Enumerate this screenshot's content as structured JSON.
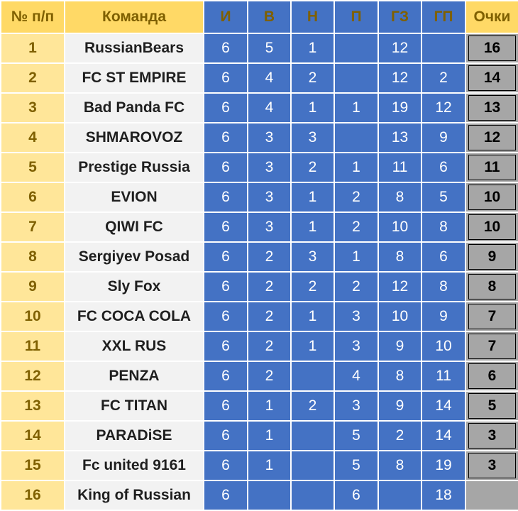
{
  "headers": {
    "num": "№ п/п",
    "team": "Команда",
    "games": "И",
    "wins": "В",
    "draws": "Н",
    "losses": "П",
    "goals_for": "ГЗ",
    "goals_against": "ГП",
    "points": "Очки"
  },
  "rows": [
    {
      "num": "1",
      "team": "RussianBears",
      "games": "6",
      "wins": "5",
      "draws": "1",
      "losses": "",
      "goals_for": "12",
      "goals_against": "",
      "points": "16"
    },
    {
      "num": "2",
      "team": "FC ST EMPIRE",
      "games": "6",
      "wins": "4",
      "draws": "2",
      "losses": "",
      "goals_for": "12",
      "goals_against": "2",
      "points": "14"
    },
    {
      "num": "3",
      "team": "Bad Panda FC",
      "games": "6",
      "wins": "4",
      "draws": "1",
      "losses": "1",
      "goals_for": "19",
      "goals_against": "12",
      "points": "13"
    },
    {
      "num": "4",
      "team": "SHMAROVOZ",
      "games": "6",
      "wins": "3",
      "draws": "3",
      "losses": "",
      "goals_for": "13",
      "goals_against": "9",
      "points": "12"
    },
    {
      "num": "5",
      "team": "Prestige Russia",
      "games": "6",
      "wins": "3",
      "draws": "2",
      "losses": "1",
      "goals_for": "11",
      "goals_against": "6",
      "points": "11"
    },
    {
      "num": "6",
      "team": "EVION",
      "games": "6",
      "wins": "3",
      "draws": "1",
      "losses": "2",
      "goals_for": "8",
      "goals_against": "5",
      "points": "10"
    },
    {
      "num": "7",
      "team": "QIWI FC",
      "games": "6",
      "wins": "3",
      "draws": "1",
      "losses": "2",
      "goals_for": "10",
      "goals_against": "8",
      "points": "10"
    },
    {
      "num": "8",
      "team": "Sergiyev Posad",
      "games": "6",
      "wins": "2",
      "draws": "3",
      "losses": "1",
      "goals_for": "8",
      "goals_against": "6",
      "points": "9"
    },
    {
      "num": "9",
      "team": "Sly Fox",
      "games": "6",
      "wins": "2",
      "draws": "2",
      "losses": "2",
      "goals_for": "12",
      "goals_against": "8",
      "points": "8"
    },
    {
      "num": "10",
      "team": "FC COCA COLA",
      "games": "6",
      "wins": "2",
      "draws": "1",
      "losses": "3",
      "goals_for": "10",
      "goals_against": "9",
      "points": "7"
    },
    {
      "num": "11",
      "team": "XXL RUS",
      "games": "6",
      "wins": "2",
      "draws": "1",
      "losses": "3",
      "goals_for": "9",
      "goals_against": "10",
      "points": "7"
    },
    {
      "num": "12",
      "team": "PENZA",
      "games": "6",
      "wins": "2",
      "draws": "",
      "losses": "4",
      "goals_for": "8",
      "goals_against": "11",
      "points": "6"
    },
    {
      "num": "13",
      "team": "FC TITAN",
      "games": "6",
      "wins": "1",
      "draws": "2",
      "losses": "3",
      "goals_for": "9",
      "goals_against": "14",
      "points": "5"
    },
    {
      "num": "14",
      "team": "PARADiSE",
      "games": "6",
      "wins": "1",
      "draws": "",
      "losses": "5",
      "goals_for": "2",
      "goals_against": "14",
      "points": "3"
    },
    {
      "num": "15",
      "team": "Fc united 9161",
      "games": "6",
      "wins": "1",
      "draws": "",
      "losses": "5",
      "goals_for": "8",
      "goals_against": "19",
      "points": "3"
    },
    {
      "num": "16",
      "team": "King of Russian",
      "games": "6",
      "wins": "",
      "draws": "",
      "losses": "6",
      "goals_for": "",
      "goals_against": "18",
      "points": ""
    }
  ],
  "colors": {
    "header_yellow": "#ffd966",
    "num_yellow": "#ffe699",
    "team_bg": "#f2f2f2",
    "stat_blue": "#4472c4",
    "points_grey": "#a6a6a6",
    "header_text": "#7f6000"
  }
}
